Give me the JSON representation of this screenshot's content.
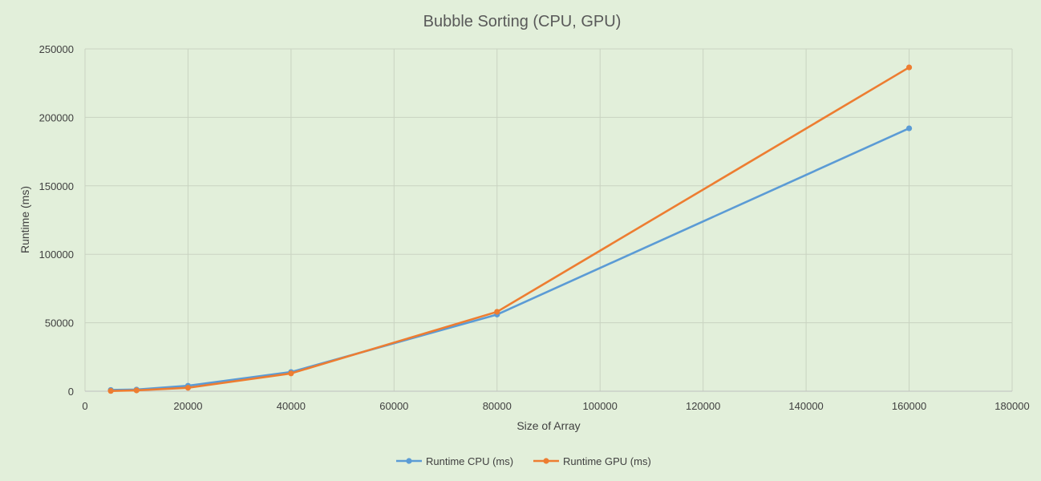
{
  "chart_data": {
    "type": "line",
    "title": "Bubble Sorting (CPU, GPU)",
    "xlabel": "Size of Array",
    "ylabel": "Runtime (ms)",
    "xlim": [
      0,
      180000
    ],
    "ylim": [
      0,
      250000
    ],
    "x_ticks": [
      "0",
      "20000",
      "40000",
      "60000",
      "80000",
      "100000",
      "120000",
      "140000",
      "160000",
      "180000"
    ],
    "y_ticks": [
      "0",
      "50000",
      "100000",
      "150000",
      "200000",
      "250000"
    ],
    "grid": true,
    "legend_position": "bottom",
    "x": [
      5000,
      10000,
      20000,
      40000,
      80000,
      160000
    ],
    "series": [
      {
        "name": "Runtime CPU (ms)",
        "color": "#5b9bd5",
        "values": [
          900,
          1200,
          4000,
          14000,
          56000,
          192000
        ]
      },
      {
        "name": "Runtime GPU (ms)",
        "color": "#ed7d31",
        "values": [
          200,
          600,
          2500,
          13000,
          58000,
          236500
        ]
      }
    ]
  }
}
